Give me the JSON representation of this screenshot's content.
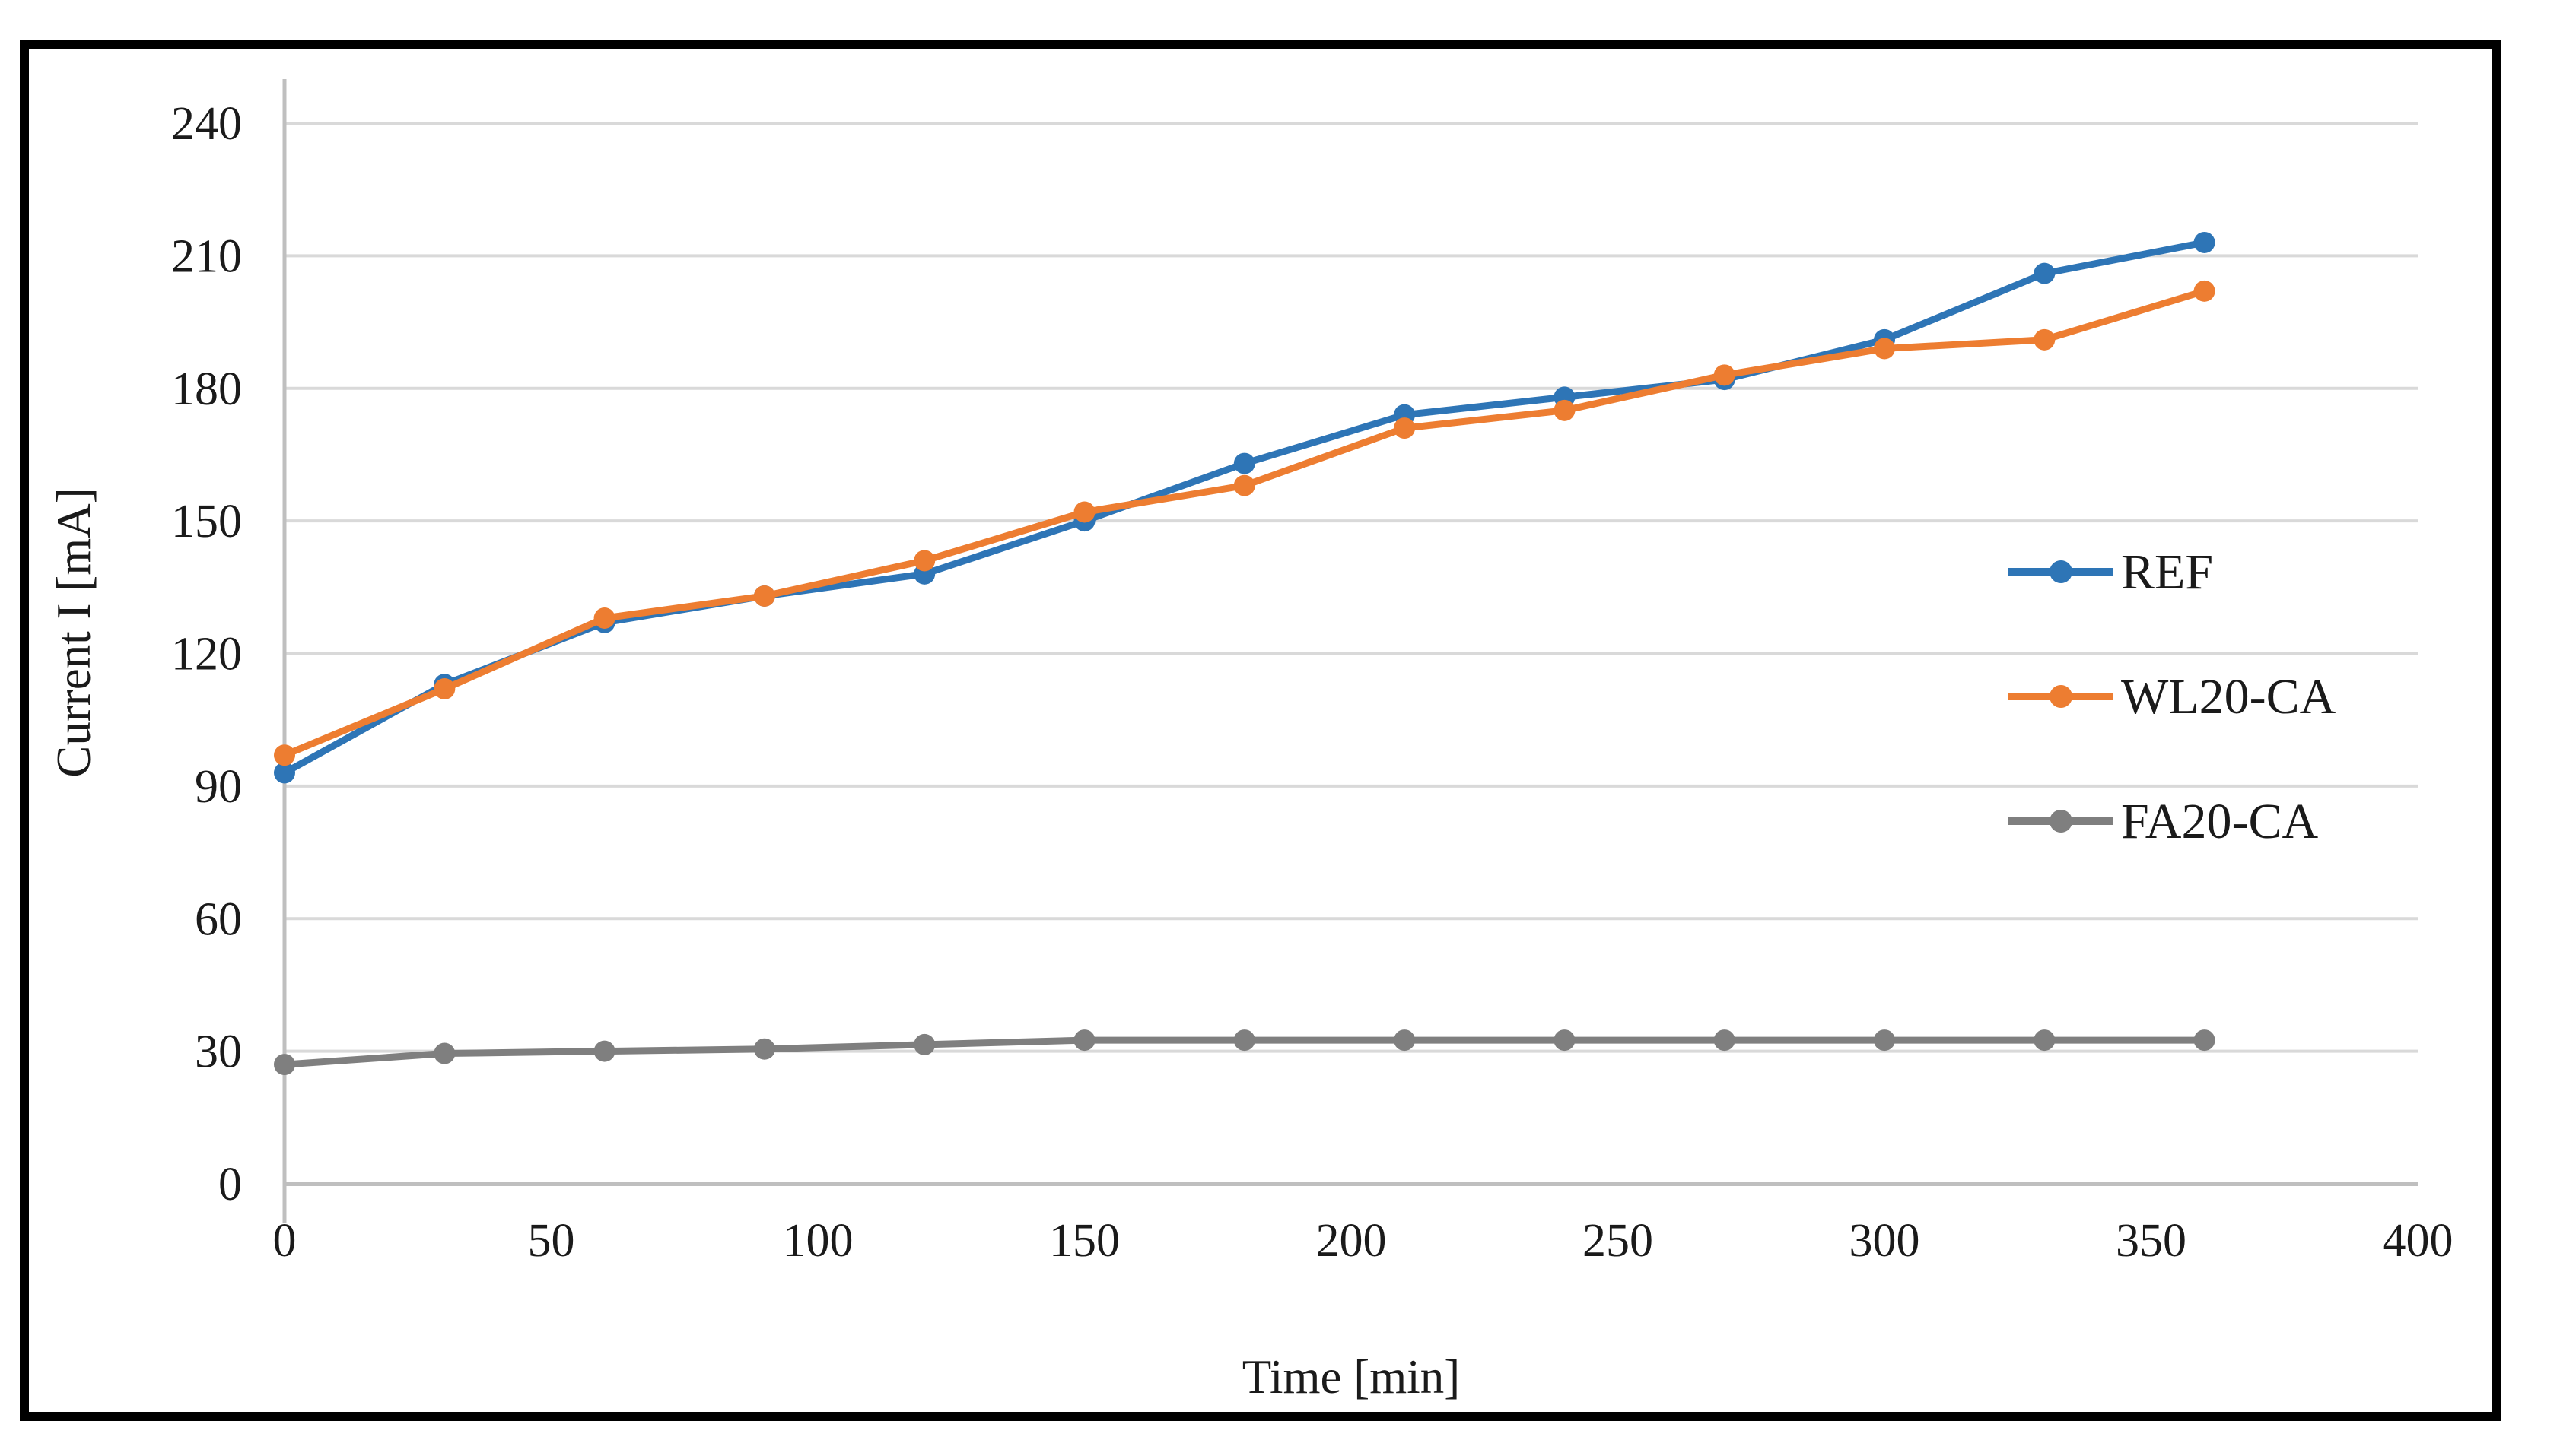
{
  "chart_data": {
    "type": "line",
    "title": "",
    "xlabel": "Time [min]",
    "ylabel": "Current I [mA]",
    "x": [
      0,
      30,
      60,
      90,
      120,
      150,
      180,
      210,
      240,
      270,
      300,
      330,
      360
    ],
    "series": [
      {
        "name": "REF",
        "color": "#2E75B6",
        "values": [
          93,
          113,
          127,
          133,
          138,
          150,
          163,
          174,
          178,
          182,
          191,
          206,
          213
        ]
      },
      {
        "name": "WL20-CA",
        "color": "#ED7D31",
        "values": [
          97,
          112,
          128,
          133,
          141,
          152,
          158,
          171,
          175,
          183,
          189,
          191,
          202
        ]
      },
      {
        "name": "FA20-CA",
        "color": "#7F7F7F",
        "values": [
          27,
          29.5,
          30,
          30.5,
          31.5,
          32.5,
          32.5,
          32.5,
          32.5,
          32.5,
          32.5,
          32.5,
          32.5
        ]
      }
    ],
    "x_ticks": [
      0,
      50,
      100,
      150,
      200,
      250,
      300,
      350,
      400
    ],
    "y_ticks": [
      0,
      30,
      60,
      90,
      120,
      150,
      180,
      210,
      240
    ],
    "xlim": [
      0,
      400
    ],
    "ylim": [
      0,
      240
    ],
    "grid": "horizontal",
    "legend_position": "inside-right",
    "colors": {
      "gridline": "#D9D9D9",
      "axis_line": "#BFBFBF",
      "tick_text": "#262626",
      "frame_border": "#000000"
    }
  }
}
